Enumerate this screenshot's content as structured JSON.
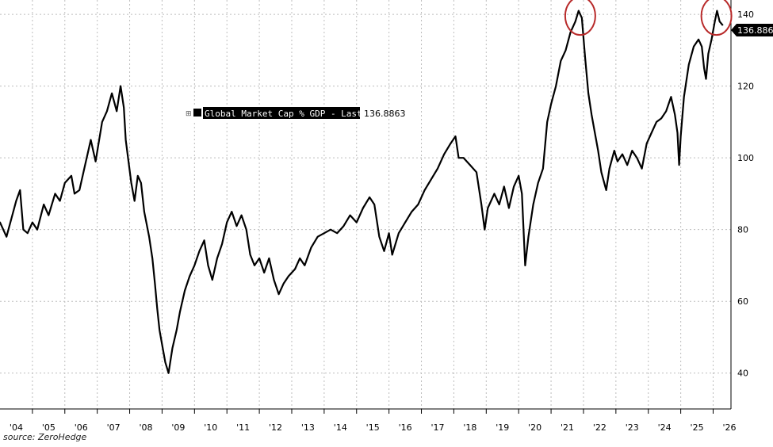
{
  "source": "source: ZeroHedge",
  "chart_data": {
    "type": "line",
    "title": "",
    "xlabel": "",
    "ylabel": "",
    "legend": {
      "label": "Global Market Cap % GDP - Last Price",
      "value": "136.8863",
      "placement": "top-center"
    },
    "last_price_label": "136.8863",
    "x_tick_labels": [
      "'04",
      "'05",
      "'06",
      "'07",
      "'08",
      "'09",
      "'10",
      "'11",
      "'12",
      "'13",
      "'14",
      "'15",
      "'16",
      "'17",
      "'18",
      "'19",
      "'20",
      "'21",
      "'22",
      "'23",
      "'24",
      "'25",
      "'26"
    ],
    "y_ticks": [
      40,
      60,
      80,
      100,
      120,
      140
    ],
    "xlim": [
      2004.0,
      2026.55
    ],
    "ylim": [
      30,
      144
    ],
    "grid": true,
    "y_axis_side": "right",
    "highlight_circles": [
      {
        "x": 2021.9,
        "y": 140
      },
      {
        "x": 2026.1,
        "y": 140
      }
    ],
    "series": [
      {
        "color": "#000000",
        "points": [
          [
            2003.75,
            84
          ],
          [
            2003.85,
            80
          ],
          [
            2004.0,
            82
          ],
          [
            2004.2,
            78
          ],
          [
            2004.35,
            83
          ],
          [
            2004.5,
            88
          ],
          [
            2004.62,
            91
          ],
          [
            2004.72,
            80
          ],
          [
            2004.85,
            79
          ],
          [
            2005.0,
            82
          ],
          [
            2005.15,
            80
          ],
          [
            2005.35,
            87
          ],
          [
            2005.5,
            84
          ],
          [
            2005.7,
            90
          ],
          [
            2005.85,
            88
          ],
          [
            2006.0,
            93
          ],
          [
            2006.2,
            95
          ],
          [
            2006.3,
            90
          ],
          [
            2006.45,
            91
          ],
          [
            2006.6,
            97
          ],
          [
            2006.8,
            105
          ],
          [
            2006.95,
            99
          ],
          [
            2007.15,
            110
          ],
          [
            2007.3,
            113
          ],
          [
            2007.45,
            118
          ],
          [
            2007.6,
            113
          ],
          [
            2007.72,
            120
          ],
          [
            2007.82,
            114
          ],
          [
            2007.88,
            105
          ],
          [
            2007.95,
            100
          ],
          [
            2008.05,
            93
          ],
          [
            2008.15,
            88
          ],
          [
            2008.25,
            95
          ],
          [
            2008.35,
            93
          ],
          [
            2008.45,
            85
          ],
          [
            2008.6,
            78
          ],
          [
            2008.7,
            72
          ],
          [
            2008.78,
            65
          ],
          [
            2008.85,
            58
          ],
          [
            2008.92,
            52
          ],
          [
            2009.0,
            48
          ],
          [
            2009.1,
            43
          ],
          [
            2009.2,
            40
          ],
          [
            2009.32,
            47
          ],
          [
            2009.45,
            52
          ],
          [
            2009.55,
            57
          ],
          [
            2009.7,
            63
          ],
          [
            2009.85,
            67
          ],
          [
            2010.0,
            70
          ],
          [
            2010.15,
            74
          ],
          [
            2010.3,
            77
          ],
          [
            2010.42,
            70
          ],
          [
            2010.55,
            66
          ],
          [
            2010.7,
            72
          ],
          [
            2010.85,
            76
          ],
          [
            2011.0,
            82
          ],
          [
            2011.15,
            85
          ],
          [
            2011.3,
            81
          ],
          [
            2011.45,
            84
          ],
          [
            2011.6,
            80
          ],
          [
            2011.72,
            73
          ],
          [
            2011.85,
            70
          ],
          [
            2012.0,
            72
          ],
          [
            2012.15,
            68
          ],
          [
            2012.3,
            72
          ],
          [
            2012.45,
            66
          ],
          [
            2012.6,
            62
          ],
          [
            2012.75,
            65
          ],
          [
            2012.9,
            67
          ],
          [
            2013.1,
            69
          ],
          [
            2013.25,
            72
          ],
          [
            2013.4,
            70
          ],
          [
            2013.6,
            75
          ],
          [
            2013.8,
            78
          ],
          [
            2014.0,
            79
          ],
          [
            2014.2,
            80
          ],
          [
            2014.4,
            79
          ],
          [
            2014.6,
            81
          ],
          [
            2014.8,
            84
          ],
          [
            2015.0,
            82
          ],
          [
            2015.2,
            86
          ],
          [
            2015.4,
            89
          ],
          [
            2015.55,
            87
          ],
          [
            2015.7,
            78
          ],
          [
            2015.85,
            74
          ],
          [
            2016.0,
            79
          ],
          [
            2016.1,
            73
          ],
          [
            2016.3,
            79
          ],
          [
            2016.5,
            82
          ],
          [
            2016.7,
            85
          ],
          [
            2016.9,
            87
          ],
          [
            2017.1,
            91
          ],
          [
            2017.3,
            94
          ],
          [
            2017.5,
            97
          ],
          [
            2017.7,
            101
          ],
          [
            2017.9,
            104
          ],
          [
            2018.05,
            106
          ],
          [
            2018.15,
            100
          ],
          [
            2018.3,
            100
          ],
          [
            2018.5,
            98
          ],
          [
            2018.7,
            96
          ],
          [
            2018.85,
            87
          ],
          [
            2018.95,
            80
          ],
          [
            2019.05,
            86
          ],
          [
            2019.25,
            90
          ],
          [
            2019.4,
            87
          ],
          [
            2019.55,
            92
          ],
          [
            2019.7,
            86
          ],
          [
            2019.85,
            92
          ],
          [
            2020.0,
            95
          ],
          [
            2020.1,
            90
          ],
          [
            2020.2,
            70
          ],
          [
            2020.3,
            78
          ],
          [
            2020.45,
            87
          ],
          [
            2020.6,
            93
          ],
          [
            2020.75,
            97
          ],
          [
            2020.88,
            110
          ],
          [
            2021.0,
            115
          ],
          [
            2021.15,
            120
          ],
          [
            2021.3,
            127
          ],
          [
            2021.45,
            130
          ],
          [
            2021.6,
            135
          ],
          [
            2021.75,
            138
          ],
          [
            2021.85,
            141
          ],
          [
            2021.95,
            139
          ],
          [
            2022.05,
            128
          ],
          [
            2022.15,
            118
          ],
          [
            2022.25,
            112
          ],
          [
            2022.35,
            107
          ],
          [
            2022.45,
            102
          ],
          [
            2022.55,
            96
          ],
          [
            2022.7,
            91
          ],
          [
            2022.8,
            97
          ],
          [
            2022.95,
            102
          ],
          [
            2023.05,
            99
          ],
          [
            2023.2,
            101
          ],
          [
            2023.35,
            98
          ],
          [
            2023.5,
            102
          ],
          [
            2023.65,
            100
          ],
          [
            2023.8,
            97
          ],
          [
            2023.95,
            104
          ],
          [
            2024.1,
            107
          ],
          [
            2024.25,
            110
          ],
          [
            2024.4,
            111
          ],
          [
            2024.55,
            113
          ],
          [
            2024.7,
            117
          ],
          [
            2024.82,
            112
          ],
          [
            2024.9,
            107
          ],
          [
            2024.95,
            98
          ],
          [
            2025.0,
            106
          ],
          [
            2025.1,
            117
          ],
          [
            2025.25,
            126
          ],
          [
            2025.4,
            131
          ],
          [
            2025.55,
            133
          ],
          [
            2025.65,
            131
          ],
          [
            2025.72,
            125
          ],
          [
            2025.78,
            122
          ],
          [
            2025.85,
            129
          ],
          [
            2025.95,
            133
          ],
          [
            2026.05,
            138
          ],
          [
            2026.12,
            141
          ],
          [
            2026.2,
            138
          ],
          [
            2026.3,
            136.9
          ]
        ]
      }
    ]
  }
}
